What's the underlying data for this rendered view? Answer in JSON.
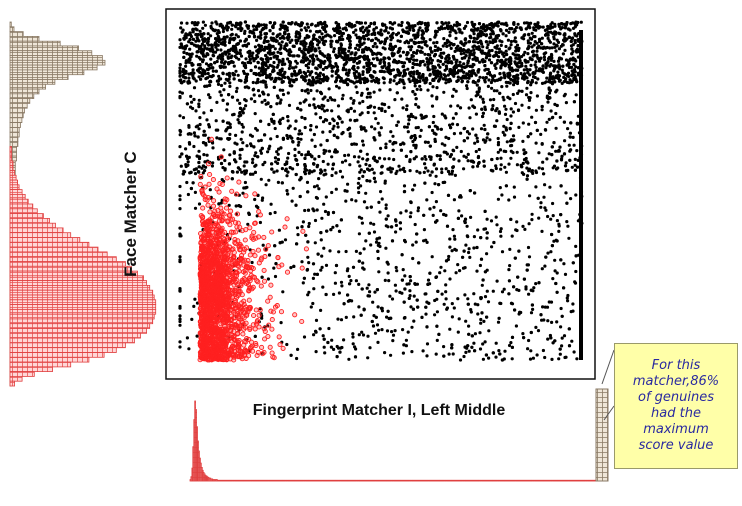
{
  "chart_data": {
    "type": "scatter",
    "title": "",
    "xlabel": "Fingerprint Matcher I, Left Middle",
    "ylabel": "Face Matcher C",
    "xlim": [
      0,
      1
    ],
    "ylim": [
      0,
      1
    ],
    "grid": false,
    "series": [
      {
        "color": "#000000",
        "marker": "filled-dot",
        "description_count": 5200
      },
      {
        "color": "#ff2020",
        "marker": "open-circle",
        "description_count": 1700
      }
    ],
    "impostor_cluster": {
      "x_center": 0.08,
      "x_spread": 0.05,
      "y_center": 0.18,
      "y_spread": 0.22
    },
    "genuine_distribution": {
      "x_range": [
        0.0,
        1.0
      ],
      "y_concentration": "top",
      "max_score_fraction": 0.86
    },
    "marginal_histograms": {
      "left": {
        "orientation": "vertical",
        "gray": [
          1,
          3,
          10,
          22,
          38,
          52,
          62,
          70,
          72,
          66,
          56,
          44,
          34,
          27,
          22,
          18,
          15,
          13,
          11,
          10,
          9,
          8,
          7,
          7,
          6,
          6,
          5,
          5,
          5,
          4,
          4,
          4,
          3,
          3,
          3,
          3,
          2,
          2,
          2,
          2,
          2,
          2,
          2,
          2,
          1,
          1,
          1,
          1,
          1,
          1,
          1,
          1,
          1,
          1,
          1,
          1,
          1,
          1,
          1,
          1,
          1,
          1,
          1,
          1,
          1,
          1,
          1,
          1,
          1,
          1,
          1,
          1,
          1,
          1,
          1,
          1
        ],
        "red": [
          0,
          0,
          0,
          0,
          0,
          0,
          0,
          0,
          0,
          0,
          0,
          0,
          0,
          0,
          0,
          0,
          0,
          0,
          0,
          0,
          0,
          0,
          0,
          0,
          0,
          0,
          1,
          1,
          1,
          2,
          2,
          3,
          4,
          5,
          6,
          8,
          10,
          12,
          15,
          18,
          22,
          26,
          30,
          35,
          40,
          46,
          52,
          58,
          64,
          70,
          76,
          80,
          84,
          88,
          90,
          92,
          94,
          95,
          96,
          96,
          96,
          95,
          94,
          92,
          90,
          86,
          82,
          76,
          70,
          62,
          52,
          40,
          28,
          16,
          8,
          3
        ]
      },
      "bottom": {
        "orientation": "horizontal",
        "gray_spike_at_max": 1.0,
        "red": [
          2,
          6,
          18,
          48,
          86,
          112,
          100,
          76,
          56,
          42,
          32,
          25,
          19,
          15,
          12,
          10,
          8,
          7,
          6,
          5,
          4,
          4,
          3,
          3,
          2,
          2,
          2,
          2,
          2,
          1,
          1,
          1,
          1,
          1,
          1,
          1,
          1,
          1,
          1,
          1,
          1,
          1,
          1,
          1,
          1,
          1,
          1,
          1,
          1,
          1,
          1,
          1,
          1,
          1,
          1,
          1,
          1,
          1,
          1,
          1,
          1,
          1,
          1,
          1,
          1,
          1,
          1,
          1,
          1,
          1,
          1,
          1,
          1,
          1,
          1,
          1,
          1,
          1,
          1,
          1,
          1,
          1,
          1,
          1,
          1,
          1,
          1,
          1,
          1,
          1,
          1,
          1,
          1,
          1,
          1,
          1,
          1,
          1,
          1,
          1,
          1,
          1,
          1,
          1,
          1,
          1,
          1,
          1,
          1,
          1,
          1,
          1,
          1,
          1,
          1,
          1,
          1,
          1,
          1,
          1,
          1,
          1,
          1,
          1,
          1,
          1,
          1,
          1,
          1,
          1,
          1,
          1,
          1,
          1,
          1,
          1,
          1,
          1,
          1,
          1,
          1,
          1,
          1,
          1,
          1,
          1,
          1,
          1,
          1,
          1,
          1,
          1,
          1,
          1,
          1,
          1,
          1,
          1,
          1,
          1,
          1,
          1,
          1,
          1,
          1,
          1,
          1,
          1,
          1,
          1,
          1,
          1,
          1,
          1,
          1,
          1,
          1,
          1,
          1,
          1,
          1,
          1,
          1,
          1,
          1,
          1,
          1,
          1,
          1,
          1,
          1,
          1,
          1,
          1,
          1,
          1,
          1,
          1,
          1,
          1,
          1,
          1,
          1,
          1,
          1,
          1,
          1,
          1,
          1,
          1,
          1,
          1,
          1,
          1,
          1,
          1,
          1,
          1,
          1,
          1,
          1,
          1,
          1,
          1,
          1,
          1,
          1,
          1,
          1,
          1,
          1,
          1,
          1,
          1,
          1,
          1,
          1,
          1,
          1,
          1,
          1,
          1,
          1,
          1,
          1,
          1,
          1,
          1,
          1,
          1,
          1,
          1,
          1,
          1,
          1,
          1,
          1,
          1,
          1,
          1,
          1,
          1,
          1,
          1,
          1,
          1,
          1,
          1,
          1,
          1,
          1,
          1,
          1,
          1,
          1,
          1,
          1,
          1,
          1,
          1,
          1,
          1,
          1,
          1,
          1,
          1,
          1,
          1,
          1,
          1,
          1,
          1,
          1,
          1,
          1,
          1,
          1,
          1,
          1,
          1,
          1,
          1,
          1,
          1,
          1,
          1,
          1,
          1,
          1,
          1,
          1,
          1,
          1,
          1,
          1,
          1,
          1,
          1,
          1,
          1,
          1,
          1,
          1,
          1,
          1,
          1,
          1,
          1,
          1,
          1,
          1,
          1,
          1,
          1,
          1,
          1,
          1,
          1,
          1,
          1,
          1,
          1,
          1,
          1,
          1,
          1,
          1,
          1,
          1,
          1,
          1,
          1,
          1,
          1,
          1,
          1,
          1,
          1,
          1,
          1,
          1,
          1,
          1,
          1,
          1,
          1,
          1,
          1,
          1,
          1,
          1,
          1,
          1,
          1,
          1,
          1,
          1,
          1,
          1,
          1,
          1,
          1,
          1,
          1,
          1,
          1,
          1,
          1,
          1,
          1,
          1,
          1,
          1,
          1,
          1,
          1,
          1,
          1,
          1,
          1,
          1,
          1,
          1,
          1,
          1,
          1,
          1,
          1,
          1,
          1,
          1,
          1,
          1,
          1,
          1,
          1,
          1,
          1,
          1,
          1,
          1,
          1,
          1,
          1,
          1,
          1,
          1,
          1,
          1
        ]
      }
    },
    "annotation": {
      "lines": [
        "For this",
        "matcher,86%",
        "of genuines",
        "had the",
        "maximum",
        "score value"
      ],
      "background": "#ffffa8",
      "text_color": "#2a2aa0"
    },
    "colors": {
      "genuine": "#000000",
      "impostor": "#ff2020",
      "gray_hist": "#8a7a66"
    }
  }
}
